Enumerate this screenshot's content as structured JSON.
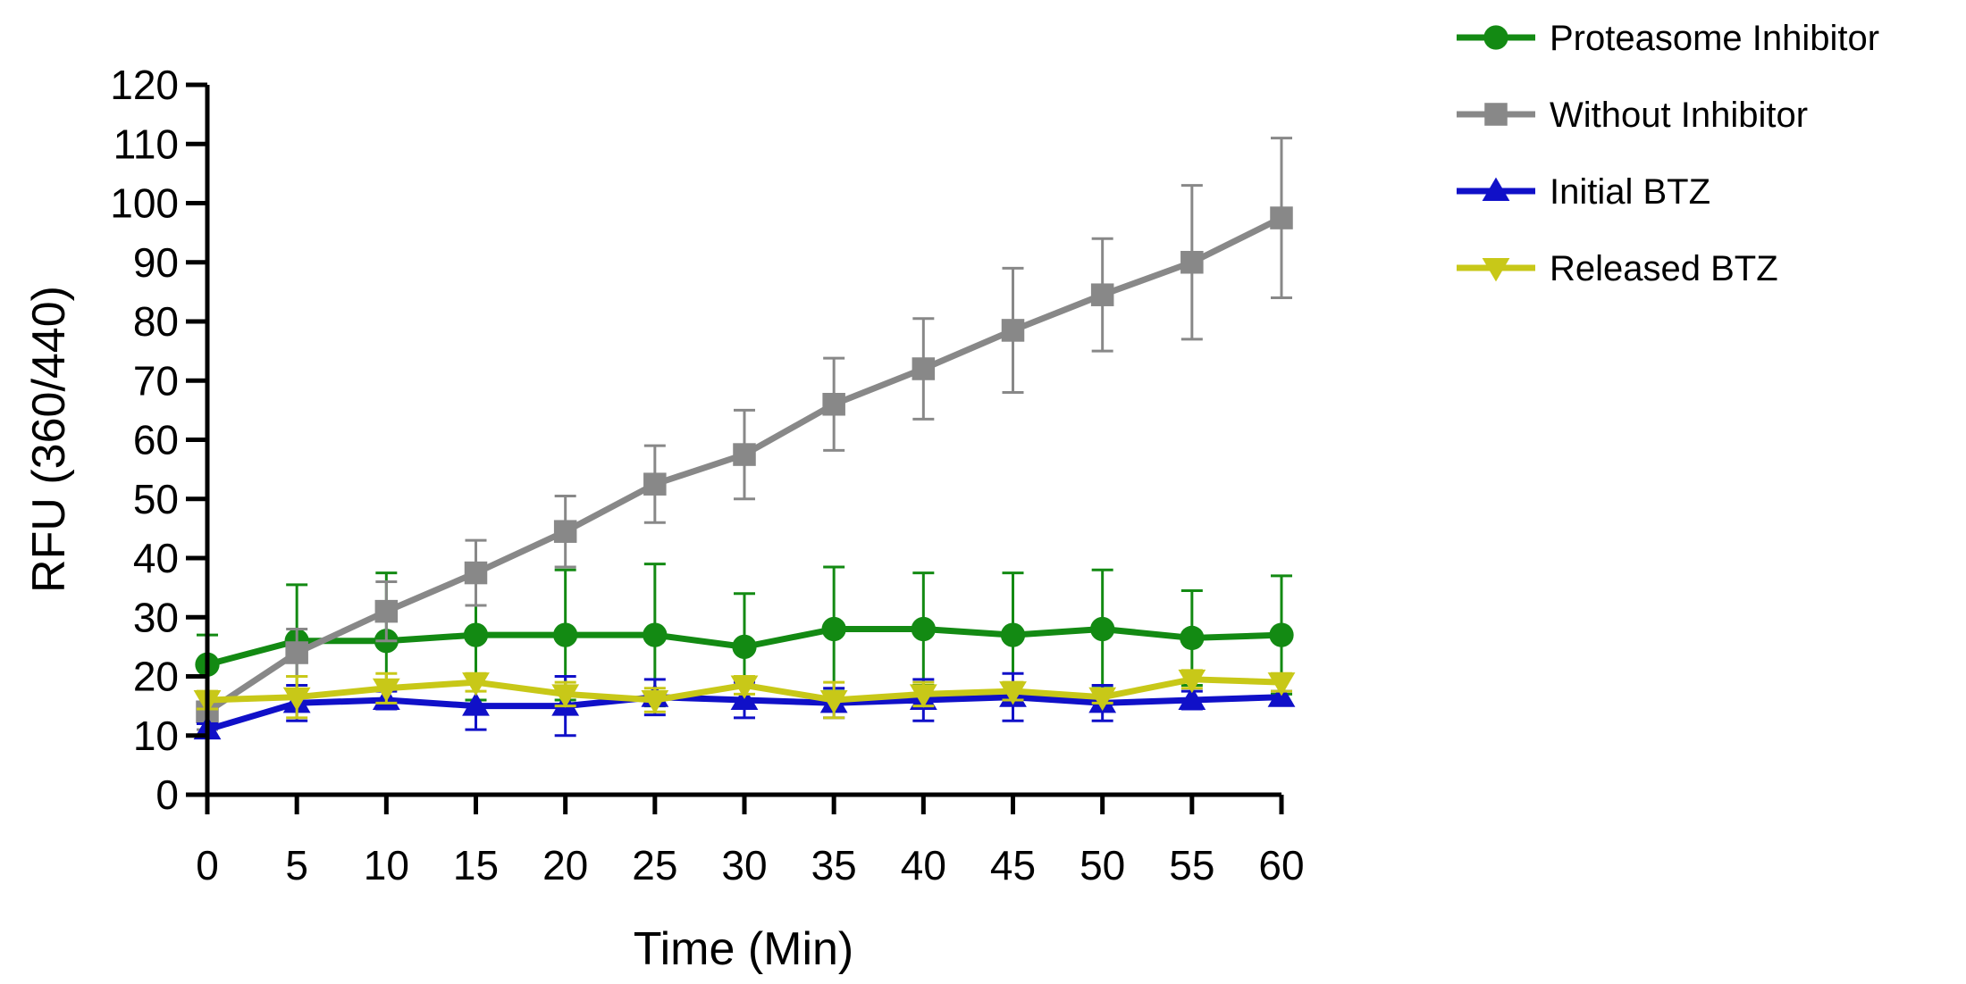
{
  "chart_data": {
    "type": "line",
    "title": "",
    "xlabel": "Time (Min)",
    "ylabel": "RFU (360/440)",
    "x": [
      0,
      5,
      10,
      15,
      20,
      25,
      30,
      35,
      40,
      45,
      50,
      55,
      60
    ],
    "xlim": [
      0,
      60
    ],
    "ylim": [
      0,
      120
    ],
    "xticks": [
      "0",
      "5",
      "10",
      "15",
      "20",
      "25",
      "30",
      "35",
      "40",
      "45",
      "50",
      "55",
      "60"
    ],
    "yticks": [
      "0",
      "10",
      "20",
      "30",
      "40",
      "50",
      "60",
      "70",
      "80",
      "90",
      "100",
      "110",
      "120"
    ],
    "grid": false,
    "legend_position": "top-right",
    "series": [
      {
        "name": "Proteasome Inhibitor",
        "color": "#138a13",
        "marker": "circle",
        "values": [
          22,
          26,
          26,
          27,
          27,
          27,
          25,
          28,
          28,
          27,
          28,
          26.5,
          27
        ],
        "errors": [
          5,
          9.5,
          11.5,
          11,
          11,
          12,
          9,
          10.5,
          9.5,
          10.5,
          10,
          8,
          10
        ]
      },
      {
        "name": "Without Inhibitor",
        "color": "#888888",
        "marker": "square",
        "values": [
          14,
          24,
          31,
          37.5,
          44.5,
          52.5,
          57.5,
          66,
          72,
          78.5,
          84.5,
          90,
          97.5
        ],
        "errors": [
          3,
          4,
          5,
          5.5,
          6,
          6.5,
          7.5,
          7.8,
          8.5,
          10.5,
          9.5,
          13,
          13.5
        ]
      },
      {
        "name": "Initial BTZ",
        "color": "#1010c8",
        "marker": "triangle-up",
        "values": [
          11,
          15.5,
          16,
          15,
          15,
          16.5,
          16,
          15.5,
          16,
          16.5,
          15.5,
          16,
          16.5
        ],
        "errors": [
          1,
          3,
          1.5,
          4,
          5,
          3,
          3,
          2.5,
          3.5,
          4,
          3,
          1.5,
          1
        ]
      },
      {
        "name": "Released BTZ",
        "color": "#c8c818",
        "marker": "triangle-down",
        "values": [
          16,
          16.5,
          18,
          19,
          17,
          16,
          18.5,
          16,
          17,
          17.5,
          16.5,
          19.5,
          19
        ],
        "errors": [
          1.5,
          3.5,
          2.5,
          1.5,
          2,
          2,
          1.5,
          3,
          2,
          1.5,
          1,
          1.5,
          1.5
        ]
      }
    ]
  }
}
